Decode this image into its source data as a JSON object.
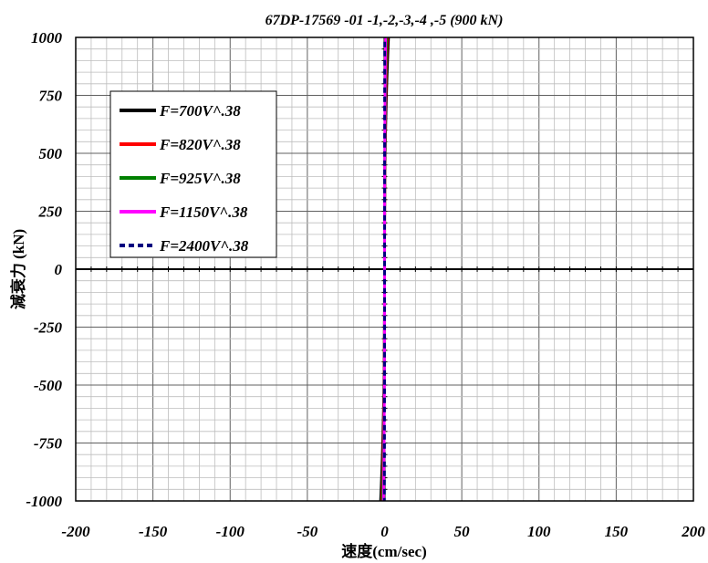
{
  "chart_data": {
    "type": "line",
    "title": "67DP-17569 -01 -1,-2,-3,-4 ,-5  (900 kN)",
    "xlabel": "速度(cm/sec)",
    "ylabel": "減衰力 (kN)",
    "xlim": [
      -200,
      200
    ],
    "ylim": [
      -1000,
      1000
    ],
    "x_ticks": [
      "-200",
      "-150",
      "-100",
      "-50",
      "0",
      "50",
      "100",
      "150",
      "200"
    ],
    "y_ticks": [
      "1000",
      "750",
      "500",
      "250",
      "0",
      "-250",
      "-500",
      "-750",
      "-1000"
    ],
    "grid": true,
    "legend_position": "upper-left",
    "formula": "F = C * sign(V) * |V|^0.38",
    "exponent": 0.38,
    "series": [
      {
        "name": "F=700V^.38",
        "coefficient": 700,
        "color": "#000000",
        "dash": "solid"
      },
      {
        "name": "F=820V^.38",
        "coefficient": 820,
        "color": "#ff0000",
        "dash": "solid"
      },
      {
        "name": "F=925V^.38",
        "coefficient": 925,
        "color": "#008000",
        "dash": "solid"
      },
      {
        "name": "F=1150V^.38",
        "coefficient": 1150,
        "color": "#ff00ff",
        "dash": "solid"
      },
      {
        "name": "F=2400V^.38",
        "coefficient": 2400,
        "color": "#000080",
        "dash": "dashed"
      }
    ]
  }
}
